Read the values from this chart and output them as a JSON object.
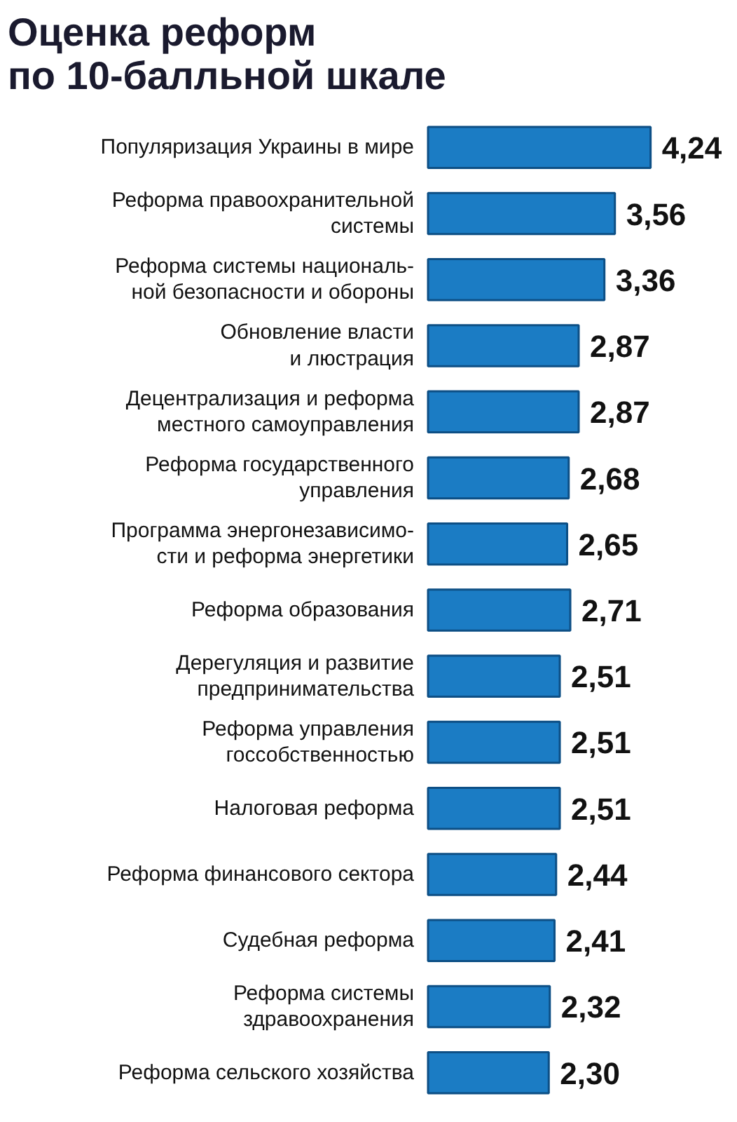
{
  "chart_data": {
    "type": "bar",
    "orientation": "horizontal",
    "title": "Оценка реформ\nпо 10-балльной шкале",
    "categories": [
      "Популяризация Украины в мире",
      "Реформа правоохранительной\nсистемы",
      "Реформа системы националь-\nной безопасности и обороны",
      "Обновление власти\nи люстрация",
      "Децентрализация и реформа\nместного самоуправления",
      "Реформа государственного\nуправления",
      "Программа энергонезависимо-\nсти и реформа энергетики",
      "Реформа образования",
      "Дерегуляция и развитие\nпредпринимательства",
      "Реформа управления\nгоссобственностью",
      "Налоговая реформа",
      "Реформа финансового сектора",
      "Судебная реформа",
      "Реформа системы\nздравоохранения",
      "Реформа сельского хозяйства"
    ],
    "values": [
      4.24,
      3.56,
      3.36,
      2.87,
      2.87,
      2.68,
      2.65,
      2.71,
      2.51,
      2.51,
      2.51,
      2.44,
      2.41,
      2.32,
      2.3
    ],
    "value_labels": [
      "4,24",
      "3,56",
      "3,36",
      "2,87",
      "2,87",
      "2,68",
      "2,65",
      "2,71",
      "2,51",
      "2,51",
      "2,51",
      "2,44",
      "2,41",
      "2,32",
      "2,30"
    ],
    "color": "#1b7cc4",
    "grid": false
  }
}
